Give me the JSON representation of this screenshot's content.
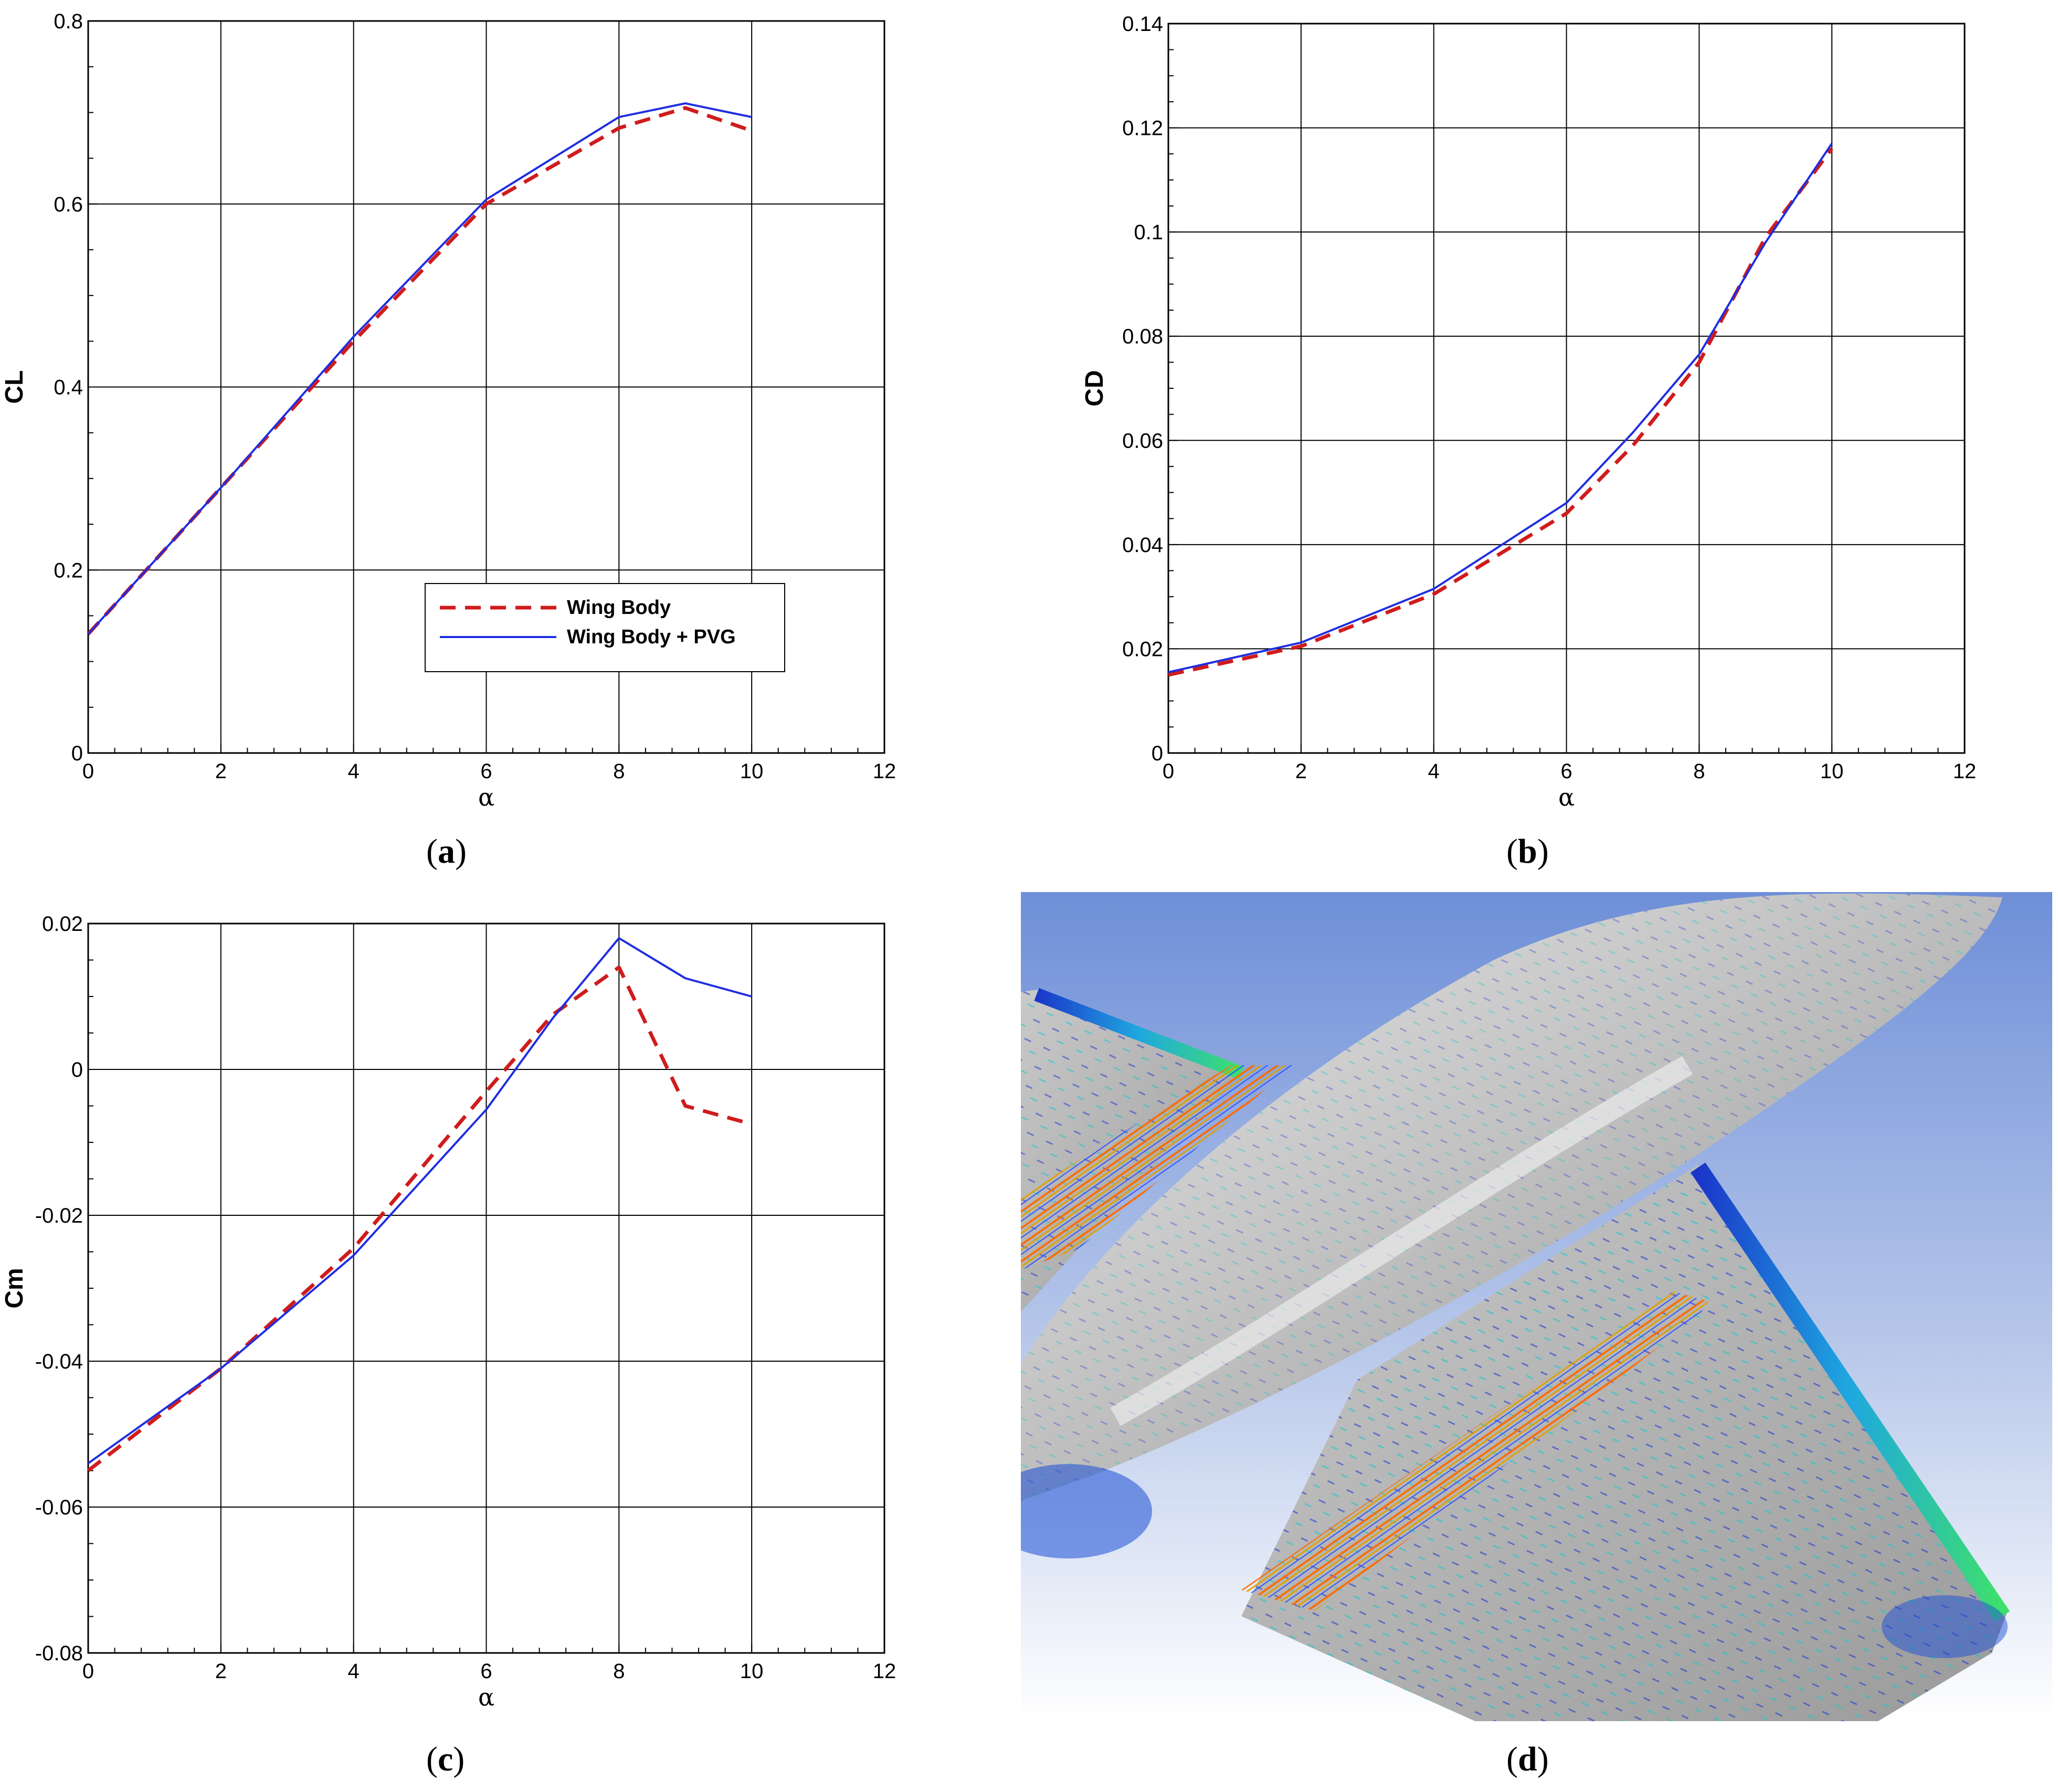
{
  "captions": {
    "a": "a",
    "b": "b",
    "c": "c",
    "d": "d"
  },
  "colors": {
    "wing_body": "#d01c1c",
    "wing_body_pvg": "#1f2ee0"
  },
  "chart_data": [
    {
      "id": "a",
      "type": "line",
      "xlabel": "α",
      "ylabel": "CL",
      "xlim": [
        0,
        12
      ],
      "ylim": [
        0,
        0.8
      ],
      "xticks": [
        "0",
        "2",
        "4",
        "6",
        "8",
        "10",
        "12"
      ],
      "yticks": [
        "0",
        "0.2",
        "0.4",
        "0.6",
        "0.8"
      ],
      "grid": true,
      "legend": {
        "position": "center-right",
        "entries": [
          "Wing Body",
          "Wing Body + PVG"
        ]
      },
      "series": [
        {
          "name": "Wing Body",
          "style": "dashed",
          "x": [
            0,
            2,
            4,
            6,
            8,
            9,
            10
          ],
          "y": [
            0.13,
            0.29,
            0.45,
            0.6,
            0.683,
            0.705,
            0.68
          ]
        },
        {
          "name": "Wing Body + PVG",
          "style": "solid",
          "x": [
            0,
            2,
            4,
            6,
            8,
            9,
            10
          ],
          "y": [
            0.13,
            0.29,
            0.455,
            0.605,
            0.695,
            0.71,
            0.695
          ]
        }
      ]
    },
    {
      "id": "b",
      "type": "line",
      "xlabel": "α",
      "ylabel": "CD",
      "xlim": [
        0,
        12
      ],
      "ylim": [
        0,
        0.14
      ],
      "xticks": [
        "0",
        "2",
        "4",
        "6",
        "8",
        "10",
        "12"
      ],
      "yticks": [
        "0",
        "0.02",
        "0.04",
        "0.06",
        "0.08",
        "0.1",
        "0.12",
        "0.14"
      ],
      "grid": true,
      "series": [
        {
          "name": "Wing Body",
          "style": "dashed",
          "x": [
            0,
            2,
            4,
            6,
            7,
            8,
            9,
            10
          ],
          "y": [
            0.015,
            0.0205,
            0.0305,
            0.046,
            0.059,
            0.075,
            0.099,
            0.116
          ]
        },
        {
          "name": "Wing Body + PVG",
          "style": "solid",
          "x": [
            0,
            2,
            4,
            6,
            7,
            8,
            9,
            10
          ],
          "y": [
            0.0155,
            0.0212,
            0.0315,
            0.048,
            0.0615,
            0.0765,
            0.098,
            0.117
          ]
        }
      ]
    },
    {
      "id": "c",
      "type": "line",
      "xlabel": "α",
      "ylabel": "Cm",
      "xlim": [
        0,
        12
      ],
      "ylim": [
        -0.08,
        0.02
      ],
      "xticks": [
        "0",
        "2",
        "4",
        "6",
        "8",
        "10",
        "12"
      ],
      "yticks": [
        "-0.08",
        "-0.06",
        "-0.04",
        "-0.02",
        "0",
        "0.02"
      ],
      "grid": true,
      "series": [
        {
          "name": "Wing Body",
          "style": "dashed",
          "x": [
            0,
            2,
            4,
            6,
            7,
            8,
            9,
            10
          ],
          "y": [
            -0.055,
            -0.041,
            -0.0245,
            -0.003,
            0.0075,
            0.014,
            -0.005,
            -0.0075
          ]
        },
        {
          "name": "Wing Body + PVG",
          "style": "solid",
          "x": [
            0,
            2,
            4,
            6,
            7,
            8,
            9,
            10
          ],
          "y": [
            -0.054,
            -0.041,
            -0.0255,
            -0.0055,
            0.007,
            0.018,
            0.0125,
            0.01
          ]
        }
      ]
    }
  ],
  "image_d": {
    "description_name": "cfd-flow-visualization"
  }
}
